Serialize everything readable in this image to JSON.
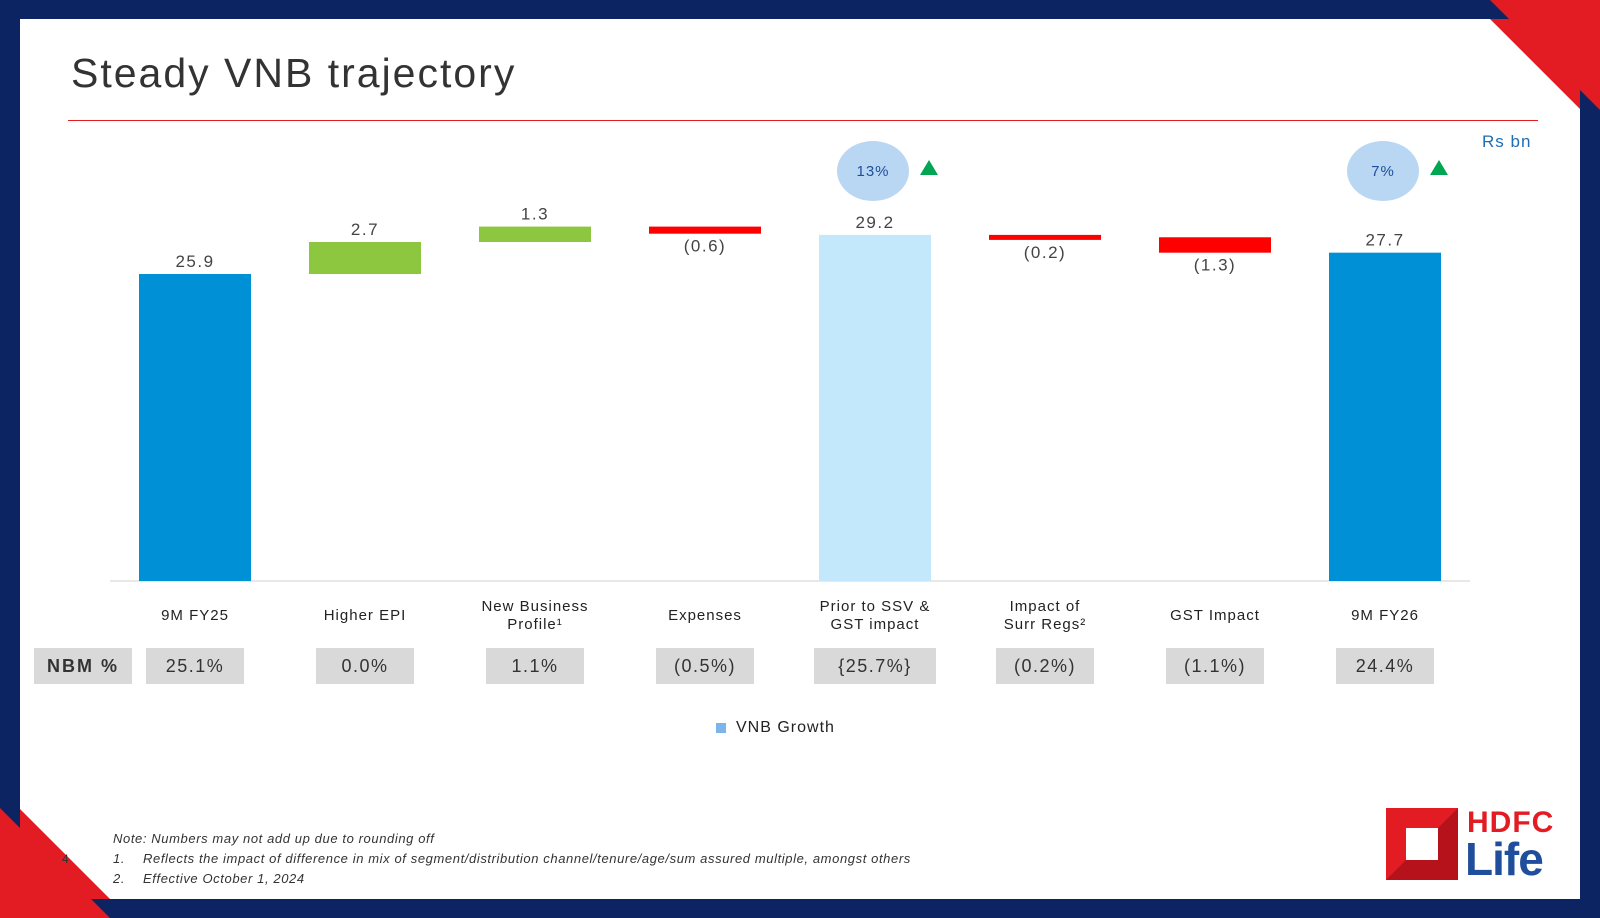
{
  "slide": {
    "title": "Steady VNB trajectory",
    "units": "Rs bn",
    "page_number": "4"
  },
  "colors": {
    "base_bar": "#0090d6",
    "interim_bar": "#c3e8fb",
    "positive": "#8dc63f",
    "negative": "#ff0000",
    "growth_bubble": "#b9d7f2",
    "growth_arrow": "#00a651",
    "brand_red": "#e31b23",
    "brand_blue": "#0c2461"
  },
  "chart_data": {
    "type": "bar",
    "subtype": "waterfall",
    "title": "Steady VNB trajectory",
    "unit": "Rs bn",
    "categories": [
      "9M FY25",
      "Higher EPI",
      "New Business Profile¹",
      "Expenses",
      "Prior to SSV & GST impact",
      "Impact of Surr Regs²",
      "GST Impact",
      "9M FY26"
    ],
    "category_lines": [
      [
        "9M FY25"
      ],
      [
        "Higher EPI"
      ],
      [
        "New Business",
        "Profile¹"
      ],
      [
        "Expenses"
      ],
      [
        "Prior to SSV &",
        "GST impact"
      ],
      [
        "Impact of",
        "Surr Regs²"
      ],
      [
        "GST Impact"
      ],
      [
        "9M FY26"
      ]
    ],
    "values": [
      25.9,
      2.7,
      1.3,
      -0.6,
      29.2,
      -0.2,
      -1.3,
      27.7
    ],
    "kinds": [
      "total",
      "increase",
      "increase",
      "decrease",
      "total",
      "decrease",
      "decrease",
      "total"
    ],
    "value_labels": [
      "25.9",
      "2.7",
      "1.3",
      "(0.6)",
      "29.2",
      "(0.2)",
      "(1.3)",
      "27.7"
    ],
    "growth_annotations": [
      {
        "category": "Prior to SSV & GST impact",
        "label": "13%",
        "direction": "up"
      },
      {
        "category": "9M FY26",
        "label": "7%",
        "direction": "up"
      }
    ],
    "legend": [
      "VNB Growth"
    ],
    "ylim": [
      0,
      34
    ]
  },
  "nbm": {
    "header": "NBM %",
    "values": [
      "25.1%",
      "0.0%",
      "1.1%",
      "(0.5%)",
      "{25.7%}",
      "(0.2%)",
      "(1.1%)",
      "24.4%"
    ]
  },
  "legend": {
    "label": "VNB Growth"
  },
  "notes": {
    "note": "Note: Numbers may not add up due to rounding off",
    "items": [
      {
        "num": "1.",
        "text": "Reflects the impact of difference in mix of segment/distribution channel/tenure/age/sum assured multiple, amongst others"
      },
      {
        "num": "2.",
        "text": "Effective October 1, 2024"
      }
    ]
  },
  "logo": {
    "line1": "HDFC",
    "line2": "Life"
  }
}
